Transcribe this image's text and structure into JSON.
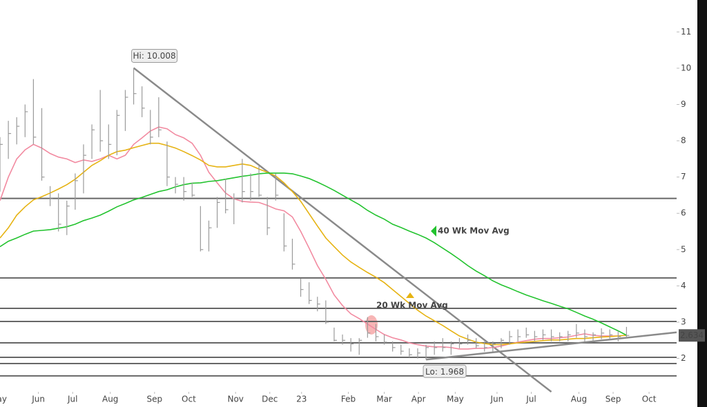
{
  "chart_data": {
    "type": "ohlc",
    "xlim": [
      0,
      81
    ],
    "xticks": [
      {
        "value": -0.2,
        "label": "May"
      },
      {
        "value": 4.6,
        "label": "Jun"
      },
      {
        "value": 8.7,
        "label": "Jul"
      },
      {
        "value": 13.2,
        "label": "Aug"
      },
      {
        "value": 18.5,
        "label": "Sep"
      },
      {
        "value": 22.6,
        "label": "Oct"
      },
      {
        "value": 28.2,
        "label": "Nov"
      },
      {
        "value": 32.3,
        "label": "Dec"
      },
      {
        "value": 36.1,
        "label": "23"
      },
      {
        "value": 41.7,
        "label": "Feb"
      },
      {
        "value": 46.0,
        "label": "Mar"
      },
      {
        "value": 50.1,
        "label": "Apr"
      },
      {
        "value": 54.5,
        "label": "May"
      },
      {
        "value": 59.5,
        "label": "Jun"
      },
      {
        "value": 63.6,
        "label": "Jul"
      },
      {
        "value": 69.3,
        "label": "Aug"
      },
      {
        "value": 73.4,
        "label": "Sep"
      },
      {
        "value": 77.7,
        "label": "Oct"
      }
    ],
    "ylim": [
      1.08,
      11.88
    ],
    "yticks": [
      2,
      3,
      4,
      5,
      6,
      7,
      8,
      9,
      10,
      11
    ],
    "bar_color": "#9a9a9a",
    "high": [
      8.1,
      8.55,
      8.65,
      9.0,
      9.7,
      8.9,
      6.75,
      6.55,
      6.35,
      7.1,
      7.9,
      8.45,
      9.4,
      8.45,
      8.85,
      9.4,
      10.008,
      9.5,
      8.85,
      9.2,
      7.98,
      7.0,
      7.0,
      6.85,
      6.2,
      5.8,
      6.45,
      6.95,
      6.55,
      7.5,
      7.1,
      7.3,
      6.45,
      7.1,
      6.0,
      5.3,
      4.2,
      4.1,
      3.7,
      3.6,
      2.85,
      2.66,
      2.56,
      2.56,
      3.14,
      2.95,
      2.66,
      2.47,
      2.38,
      2.28,
      2.28,
      2.38,
      2.47,
      2.56,
      2.47,
      2.56,
      2.66,
      2.56,
      2.47,
      2.47,
      2.56,
      2.76,
      2.8,
      2.85,
      2.76,
      2.8,
      2.8,
      2.72,
      2.76,
      2.95,
      2.8,
      2.72,
      2.83,
      2.8,
      2.76,
      2.87
    ],
    "low": [
      6.6,
      7.5,
      7.9,
      8.1,
      7.9,
      6.9,
      6.2,
      5.5,
      5.4,
      6.1,
      6.55,
      7.5,
      7.7,
      7.5,
      7.6,
      8.27,
      9.0,
      8.65,
      7.9,
      8.1,
      6.75,
      6.55,
      6.35,
      6.45,
      4.95,
      4.95,
      5.6,
      6.0,
      5.7,
      6.3,
      6.35,
      6.45,
      5.4,
      6.35,
      4.95,
      4.45,
      3.7,
      3.5,
      3.3,
      2.95,
      2.47,
      2.38,
      2.19,
      2.1,
      2.57,
      2.47,
      2.38,
      2.19,
      2.1,
      2.03,
      2.0,
      1.968,
      2.1,
      2.19,
      2.1,
      2.28,
      2.38,
      2.28,
      2.19,
      2.19,
      2.28,
      2.38,
      2.47,
      2.57,
      2.47,
      2.51,
      2.47,
      2.47,
      2.47,
      2.57,
      2.47,
      2.47,
      2.53,
      2.53,
      2.47,
      2.57
    ],
    "close": [
      7.9,
      8.2,
      8.4,
      8.8,
      8.1,
      7.0,
      6.4,
      5.7,
      6.2,
      6.9,
      7.6,
      8.3,
      8.0,
      7.9,
      8.7,
      9.2,
      9.3,
      8.9,
      8.1,
      8.3,
      7.0,
      6.8,
      6.6,
      6.5,
      5.0,
      5.6,
      6.3,
      6.1,
      6.4,
      6.6,
      6.6,
      6.5,
      5.6,
      6.5,
      5.1,
      4.6,
      3.9,
      3.6,
      3.5,
      3.0,
      2.5,
      2.5,
      2.4,
      2.5,
      2.7,
      2.6,
      2.45,
      2.3,
      2.2,
      2.1,
      2.15,
      2.3,
      2.3,
      2.3,
      2.4,
      2.4,
      2.5,
      2.35,
      2.3,
      2.4,
      2.5,
      2.6,
      2.6,
      2.65,
      2.6,
      2.65,
      2.6,
      2.6,
      2.65,
      2.7,
      2.6,
      2.65,
      2.7,
      2.65,
      2.6,
      2.634
    ],
    "series": [
      {
        "color": "#f28aa0",
        "values": [
          6.35,
          7.0,
          7.5,
          7.75,
          7.9,
          7.8,
          7.65,
          7.55,
          7.5,
          7.4,
          7.47,
          7.43,
          7.5,
          7.6,
          7.5,
          7.6,
          7.9,
          8.08,
          8.27,
          8.38,
          8.33,
          8.17,
          8.08,
          7.93,
          7.6,
          7.13,
          6.84,
          6.56,
          6.4,
          6.33,
          6.31,
          6.3,
          6.22,
          6.12,
          6.07,
          5.9,
          5.5,
          5.04,
          4.56,
          4.18,
          3.75,
          3.46,
          3.23,
          3.1,
          2.95,
          2.8,
          2.66,
          2.57,
          2.51,
          2.43,
          2.38,
          2.34,
          2.32,
          2.32,
          2.3,
          2.26,
          2.26,
          2.28,
          2.28,
          2.3,
          2.34,
          2.4,
          2.45,
          2.49,
          2.53,
          2.55,
          2.55,
          2.57,
          2.59,
          2.64,
          2.68,
          2.64,
          2.62,
          2.62,
          2.62,
          2.64
        ]
      },
      {
        "name": "20 Wk Mov Avg",
        "color": "#e6b312",
        "values": [
          5.32,
          5.6,
          5.95,
          6.18,
          6.37,
          6.46,
          6.56,
          6.67,
          6.79,
          6.94,
          7.13,
          7.32,
          7.45,
          7.6,
          7.7,
          7.74,
          7.81,
          7.87,
          7.93,
          7.93,
          7.87,
          7.8,
          7.7,
          7.59,
          7.47,
          7.32,
          7.28,
          7.28,
          7.32,
          7.36,
          7.32,
          7.22,
          7.13,
          7.03,
          6.84,
          6.6,
          6.33,
          5.99,
          5.65,
          5.32,
          5.08,
          4.85,
          4.66,
          4.51,
          4.37,
          4.24,
          4.09,
          3.9,
          3.71,
          3.52,
          3.33,
          3.17,
          3.04,
          2.91,
          2.76,
          2.62,
          2.53,
          2.45,
          2.41,
          2.38,
          2.38,
          2.4,
          2.43,
          2.45,
          2.47,
          2.49,
          2.51,
          2.51,
          2.53,
          2.55,
          2.55,
          2.57,
          2.59,
          2.6,
          2.62,
          2.64
        ]
      },
      {
        "name": "40 Wk Mov Avg",
        "color": "#22c32e",
        "values": [
          5.08,
          5.23,
          5.32,
          5.42,
          5.51,
          5.53,
          5.55,
          5.59,
          5.63,
          5.7,
          5.8,
          5.87,
          5.95,
          6.06,
          6.18,
          6.27,
          6.37,
          6.44,
          6.52,
          6.6,
          6.65,
          6.73,
          6.79,
          6.83,
          6.84,
          6.88,
          6.9,
          6.94,
          6.98,
          7.02,
          7.05,
          7.09,
          7.11,
          7.11,
          7.11,
          7.09,
          7.03,
          6.96,
          6.86,
          6.75,
          6.63,
          6.5,
          6.37,
          6.24,
          6.08,
          5.95,
          5.84,
          5.7,
          5.61,
          5.51,
          5.42,
          5.32,
          5.19,
          5.04,
          4.89,
          4.73,
          4.56,
          4.41,
          4.28,
          4.14,
          4.03,
          3.94,
          3.84,
          3.75,
          3.67,
          3.59,
          3.52,
          3.44,
          3.37,
          3.27,
          3.17,
          3.08,
          2.98,
          2.87,
          2.76,
          2.64
        ]
      }
    ],
    "levels": [
      6.41,
      4.22,
      3.38,
      3.02,
      2.43,
      2.03,
      1.86,
      1.52
    ],
    "trendlines": [
      {
        "x": [
          16,
          66
        ],
        "y": [
          10.008,
          1.08
        ]
      },
      {
        "x": [
          51,
          81
        ],
        "y": [
          1.968,
          2.72
        ]
      }
    ],
    "hi_label": "Hi: 10.008",
    "lo_label": "Lo: 1.968"
  }
}
